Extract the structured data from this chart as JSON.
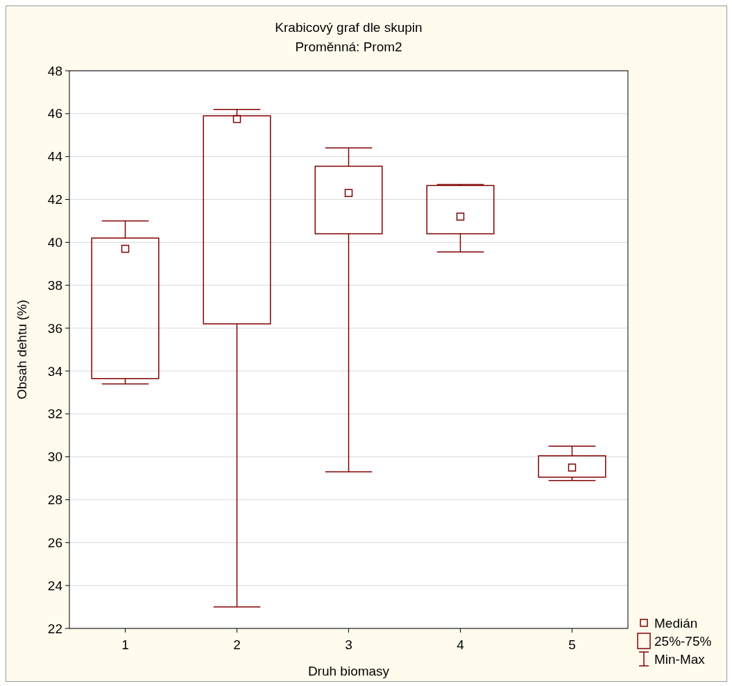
{
  "chart_data": {
    "type": "box",
    "title": "Krabicový graf dle skupin",
    "subtitle": "Proměnná: Prom2",
    "xlabel": "Druh biomasy",
    "ylabel": "Obsah dehtu (%)",
    "categories": [
      "1",
      "2",
      "3",
      "4",
      "5"
    ],
    "color": "#800000",
    "boxes": [
      {
        "low": 33.4,
        "q1": 33.65,
        "median": 39.7,
        "q3": 40.2,
        "high": 41.0
      },
      {
        "low": 23.0,
        "q1": 36.2,
        "median": 45.75,
        "q3": 45.9,
        "high": 46.2
      },
      {
        "low": 29.3,
        "q1": 40.4,
        "median": 42.3,
        "q3": 43.55,
        "high": 44.4
      },
      {
        "low": 39.55,
        "q1": 40.4,
        "median": 41.2,
        "q3": 42.65,
        "high": 42.7
      },
      {
        "low": 28.9,
        "q1": 29.05,
        "median": 29.5,
        "q3": 30.05,
        "high": 30.5
      }
    ],
    "ylim": [
      22,
      48
    ],
    "yticks": [
      22,
      24,
      26,
      28,
      30,
      32,
      34,
      36,
      38,
      40,
      42,
      44,
      46,
      48
    ],
    "grid": "y",
    "marker": "square",
    "annotations": [
      "Medián",
      "25%-75%",
      "Min-Max"
    ]
  }
}
